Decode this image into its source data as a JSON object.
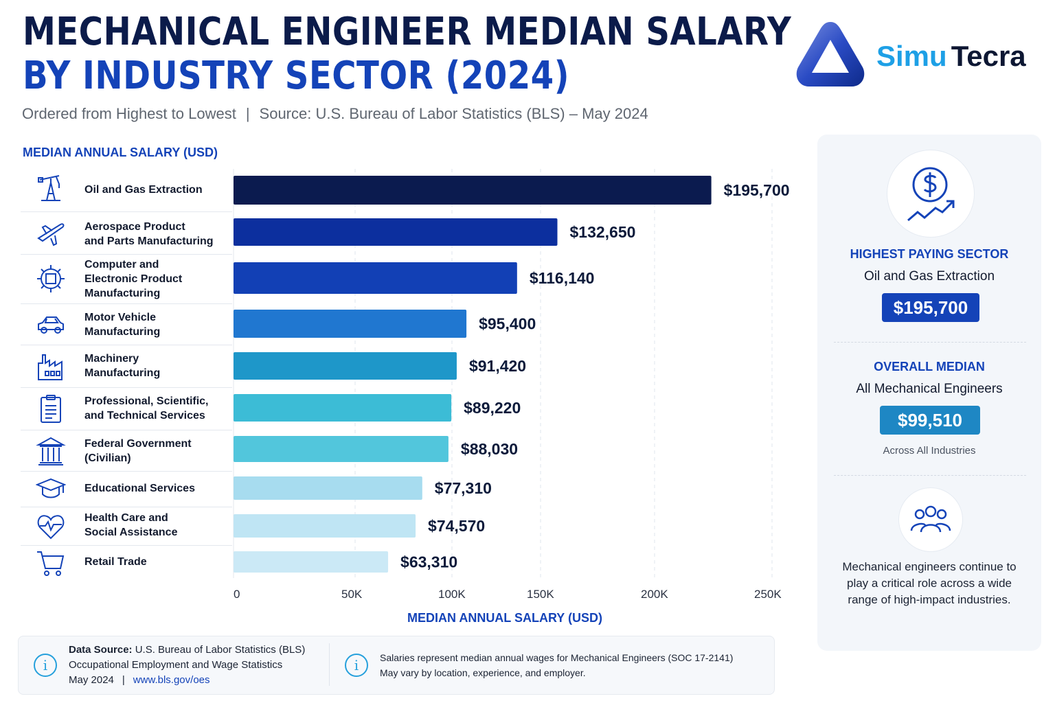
{
  "header": {
    "title_line1": "MECHANICAL ENGINEER MEDIAN SALARY",
    "title_line2": "BY INDUSTRY SECTOR (2024)",
    "subtitle_left": "Ordered from Highest to Lowest",
    "subtitle_sep": "|",
    "subtitle_right": "Source: U.S. Bureau of Labor Statistics (BLS) – May 2024"
  },
  "brand": {
    "name_part1": "Simu",
    "name_part2": "Tecra"
  },
  "chart_data": {
    "type": "bar",
    "orientation": "horizontal",
    "section_label": "MEDIAN ANNUAL SALARY (USD)",
    "xlabel": "MEDIAN ANNUAL SALARY (USD)",
    "xlim": [
      0,
      250000
    ],
    "x_ticks": [
      0,
      50000,
      100000,
      150000,
      200000,
      250000
    ],
    "x_tick_labels": [
      "0",
      "50K",
      "100K",
      "150K",
      "200K",
      "250K"
    ],
    "grid": "vertical dashed",
    "categories": [
      "Oil and Gas Extraction",
      "Aerospace Product\nand Parts Manufacturing",
      "Computer and\nElectronic Product\nManufacturing",
      "Motor Vehicle\nManufacturing",
      "Machinery\nManufacturing",
      "Professional, Scientific,\nand Technical Services",
      "Federal Government\n(Civilian)",
      "Educational Services",
      "Health Care and\nSocial Assistance",
      "Retail Trade"
    ],
    "values": [
      195700,
      132650,
      116140,
      95400,
      91420,
      89220,
      88030,
      77310,
      74570,
      63310
    ],
    "value_labels": [
      "$195,700",
      "$132,650",
      "$116,140",
      "$95,400",
      "$91,420",
      "$89,220",
      "$88,030",
      "$77,310",
      "$74,570",
      "$63,310"
    ],
    "colors": [
      "#0b1b4f",
      "#0c2f9e",
      "#1240b5",
      "#2077d0",
      "#1e97c9",
      "#3cbcd6",
      "#52c6dc",
      "#a7dcef",
      "#bfe5f4",
      "#cbe9f6"
    ],
    "icons": [
      "oil-pump-icon",
      "airplane-icon",
      "chip-gear-icon",
      "car-icon",
      "factory-icon",
      "clipboard-icon",
      "government-building-icon",
      "graduation-cap-icon",
      "heart-pulse-icon",
      "shopping-cart-icon"
    ]
  },
  "panel": {
    "highest_head": "HIGHEST PAYING SECTOR",
    "highest_sector": "Oil and Gas Extraction",
    "highest_value": "$195,700",
    "overall_head": "OVERALL MEDIAN",
    "overall_sub": "All Mechanical Engineers",
    "overall_value": "$99,510",
    "overall_note": "Across All Industries",
    "description": "Mechanical engineers continue to play a critical role across a wide range of high-impact industries."
  },
  "footer": {
    "source_label": "Data Source:",
    "source_text": " U.S. Bureau of Labor Statistics (BLS)",
    "source_line2": "Occupational Employment and Wage Statistics",
    "source_line3": "May 2024",
    "source_sep": "|",
    "source_link": "www.bls.gov/oes",
    "note_line1": "Salaries represent median annual wages for Mechanical Engineers (SOC 17-2141)",
    "note_line2": "May vary by location, experience, and employer."
  },
  "colors": {
    "navy": "#0b1b4a",
    "blue": "#1443b8",
    "cyan": "#1ea0e6",
    "badge_navy": "#1443b8",
    "badge_teal": "#1e87c4"
  }
}
